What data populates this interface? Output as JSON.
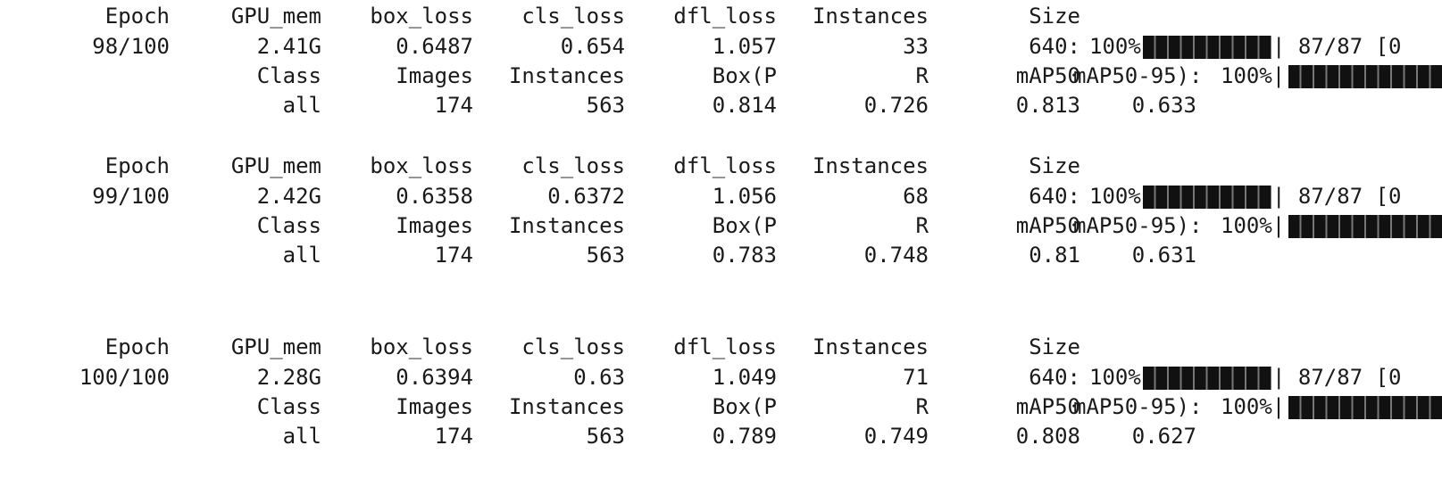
{
  "train_header": {
    "epoch": "Epoch",
    "gpu_mem": "GPU_mem",
    "box_loss": "box_loss",
    "cls_loss": "cls_loss",
    "dfl_loss": "dfl_loss",
    "instances": "Instances",
    "size": "Size"
  },
  "val_header": {
    "class": "Class",
    "images": "Images",
    "instances": "Instances",
    "box_p": "Box(P",
    "r": "R",
    "map50": "mAP50",
    "map50_95": "mAP50-95):"
  },
  "epochs": [
    {
      "epoch": "98/100",
      "gpu_mem": "2.41G",
      "box_loss": "0.6487",
      "cls_loss": "0.654",
      "dfl_loss": "1.057",
      "instances": "33",
      "size": "640:",
      "train_progress_percent": "100%|",
      "train_progress_fraction": 1.0,
      "train_progress_tail": "| 87/87 [0",
      "val_progress_percent": "100%|",
      "val_progress_fraction": 1.0,
      "val": {
        "class": "all",
        "images": "174",
        "instances": "563",
        "box_p": "0.814",
        "r": "0.726",
        "map50": "0.813",
        "map50_95": "0.633"
      }
    },
    {
      "epoch": "99/100",
      "gpu_mem": "2.42G",
      "box_loss": "0.6358",
      "cls_loss": "0.6372",
      "dfl_loss": "1.056",
      "instances": "68",
      "size": "640:",
      "train_progress_percent": "100%|",
      "train_progress_fraction": 1.0,
      "train_progress_tail": "| 87/87 [0",
      "val_progress_percent": "100%|",
      "val_progress_fraction": 1.0,
      "val": {
        "class": "all",
        "images": "174",
        "instances": "563",
        "box_p": "0.783",
        "r": "0.748",
        "map50": "0.81",
        "map50_95": "0.631"
      }
    },
    {
      "epoch": "100/100",
      "gpu_mem": "2.28G",
      "box_loss": "0.6394",
      "cls_loss": "0.63",
      "dfl_loss": "1.049",
      "instances": "71",
      "size": "640:",
      "train_progress_percent": "100%|",
      "train_progress_fraction": 1.0,
      "train_progress_tail": "| 87/87 [0",
      "val_progress_percent": "100%|",
      "val_progress_fraction": 1.0,
      "val": {
        "class": "all",
        "images": "174",
        "instances": "563",
        "box_p": "0.789",
        "r": "0.749",
        "map50": "0.808",
        "map50_95": "0.627"
      }
    }
  ],
  "colors": {
    "background": "#ffffff",
    "text": "#1a1a1a",
    "progress_fill": "#111111"
  }
}
